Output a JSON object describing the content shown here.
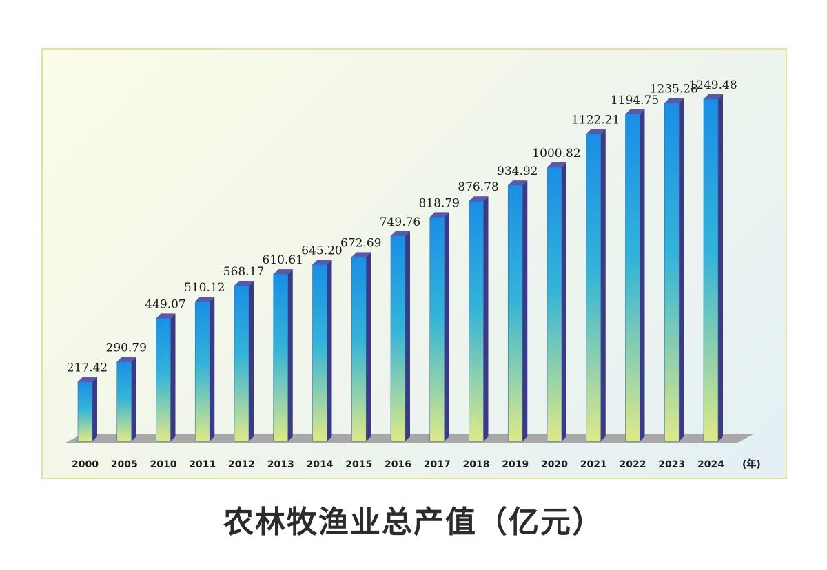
{
  "chart_data": {
    "type": "bar",
    "title": "农林牧渔业总产值（亿元）",
    "categories": [
      "2000",
      "2005",
      "2010",
      "2011",
      "2012",
      "2013",
      "2014",
      "2015",
      "2016",
      "2017",
      "2018",
      "2019",
      "2020",
      "2021",
      "2022",
      "2023",
      "2024"
    ],
    "values": [
      217.42,
      290.79,
      449.07,
      510.12,
      568.17,
      610.61,
      645.2,
      672.69,
      749.76,
      818.79,
      876.78,
      934.92,
      1000.82,
      1122.21,
      1194.75,
      1235.28,
      1249.48
    ],
    "value_labels": [
      "217.42",
      "290.79",
      "449.07",
      "510.12",
      "568.17",
      "610.61",
      "645.20",
      "672.69",
      "749.76",
      "818.79",
      "876.78",
      "934.92",
      "1000.82",
      "1122.21",
      "1194.75",
      "1235.28",
      "1249.48"
    ],
    "xlabel": "(年)",
    "ylabel": "",
    "ylim": [
      0,
      1300
    ],
    "grid": false,
    "legend": "none"
  },
  "colors": {
    "bar_top": "#1a8ee6",
    "bar_mid": "#33b4d8",
    "bar_bottom": "#dfe986",
    "bar_side": "#3c3a86",
    "bar_cap": "#5a58a8",
    "floor": "#a8a8a8",
    "frame_border": "#e3e39a"
  }
}
